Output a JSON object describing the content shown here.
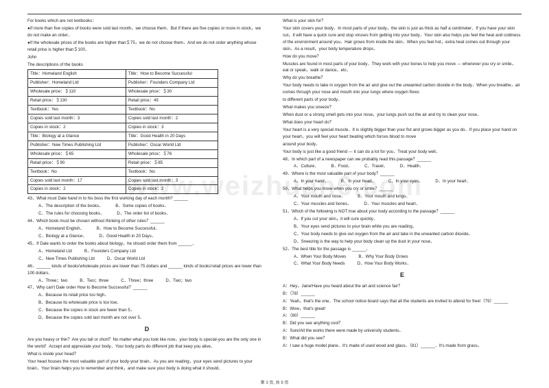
{
  "watermark": "www.weizhuan6.com",
  "footer": "第 3 页, 共 9 页",
  "left": {
    "intro1": "For books which are not textbooks：",
    "intro2": "●If more than five copies of books were sold last month，we choose them．But if there are five copies or more in stock，we do not make an order．",
    "intro3": "●If the wholesale prices of the books are higher than＄75，we do not choose them．And we do not order anything whose retail price is higher than＄100．",
    "john": "John",
    "desc": "The descriptions of the books",
    "table": {
      "r1c1": "Title：Homeland English",
      "r1c2": "Title：How to Become Successful",
      "r2c1": "Publisher：Homeland Ltd",
      "r2c2": "Publisher：Founders Company Ltd",
      "r3c1": "Wholesale price：＄110",
      "r3c2": "Wholesale price：＄30",
      "r4c1": "Retail price：＄130",
      "r4c2": "Retail price：45",
      "r5c1": "Textbook：Yes",
      "r5c2": "Textbook：No",
      "r6c1": "Copies sold last month：3",
      "r6c2": "Copies sold last month：2",
      "r7c1": "Copies in stock：2",
      "r7c2": "Copies in stock：3",
      "r8c1": "Title：Biology at a Glance",
      "r8c2": "Title：Good Health in 20 Days",
      "r9c1": "Publisher：New Times Publishing Ltd",
      "r9c2": "Publisher：Oscar World Ltd",
      "r10c1": "Wholesale price：＄65",
      "r10c2": "Wholesale price：＄76",
      "r11c1": "Retail price：＄90",
      "r11c2": "Retail price：＄85",
      "r12c1": "Textbook：No",
      "r12c2": "Textbook：No",
      "r13c1": "Copies sold last month：17",
      "r13c2": "Copies sold last month：3",
      "r14c1": "Copies in stock：2",
      "r14c2": "Copies in stock：2"
    },
    "q43": "43．What must Dale hand in to his boss the first working day of each month? ______",
    "q43a": "A．The description of the books．",
    "q43b": "B．Some copies of books．",
    "q43c": "C．The rules for choosing books．",
    "q43d": "D．The order list of books．",
    "q44": "44．Which book must be chosen without thinking of other rules？______",
    "q44a": "A．Homeland English．",
    "q44b": "B．How to Become Successful．",
    "q44c": "C．Biology at a Glance．",
    "q44d": "D．Good Health in 20 Days．",
    "q45": "45．If Dale wants to order the books about biology，he should order them from ______．",
    "q45a": "A．Homeland Ltd",
    "q45b": "B．Founders Company Ltd",
    "q45c": "C．New Times Publishing Ltd",
    "q45d": "D．Oscar World Ltd",
    "q46": "46．______ kinds of books'wholesale prices are lower than 75 dollars and ______ kinds of books'retail prices are lower than 100 dollars．",
    "q46a": "A．Three；two",
    "q46b": "B．Two；three",
    "q46c": "C．Three；three",
    "q46d": "D．Two；two",
    "q47": "47．Why can't Dale order How to Become Successful？______",
    "q47a": "A．Because its retail price too high．",
    "q47b": "B．Because its wholesale price is too low．",
    "q47c": "C．Because the copies in stock are fewer than 5．",
    "q47d": "D．Because the copies sold last month are not over 5．",
    "secD": "D",
    "d1": "Are you heavy or thin？Are you tall or short？No matter what you look like now，your body is special-you are the only one in the world！Accept and appreciate your body．Your body parts do different job that keep you alive．",
    "d2": "What is inside your head？",
    "d3": "Your head houses the most valuable part of your body-your brain．As you are reading，your eyes send pictures to your brain．Your brain helps you to remember and think，and make sure your body is doing what it should．"
  },
  "right": {
    "r1": "What is your skin for？",
    "r2": "Your skin covers your body．In most parts of your body，the skin is just as thick as half a centimeter．If you have your skin cut，it will have a quick cure and stop viruses from getting into your body．Your skin also helps you feel the heat and coldness of the environment around you．Hair grows from inside the skin．When you feel hot，extra heat comes out through your skin．As a result，your body temperature drops．",
    "r3": "How do you move？",
    "r4": "Muscles are found in most parts of your body．They work with your bones to help you move --- whenever you cry or smile，eat or speak，walk or dance，etc．",
    "r5": "Why do you breathe？",
    "r6": "Your body needs to take in oxygen from the air and give out the unwanted carbon dioxide in the body．When you breathe，air comes through your nose and mouth into your lungs where oxygen flows",
    "r7": "to different parts of your body．",
    "r8": "What makes you sneeze？",
    "r9": "When dust or a strong smell gets into your nose，your lungs push out the air and try to clean your nose．",
    "r10": "What does your heart do？",
    "r11": "Your heart is a very special muscle．It is slightly bigger than your fist and grows bigger as you do．If you place your hand on your heart，you will feel your heart beating which forces blood to move",
    "r12": "around your body．",
    "r13": "Your body is just like a good friend --- it can do a lot for you．Treat your body well．",
    "q48": "48．In which part of a newspaper can we probably read this passage？______",
    "q48a": "A．Culture．",
    "q48b": "B．Food．",
    "q48c": "C．Travel．",
    "q48d": "D．Health．",
    "q49": "49．Where is the most valuable part of your body？______",
    "q49a": "A．In your hand．",
    "q49b": "B．In your head．",
    "q49c": "C．In your eyes．",
    "q49d": "D．In your heart．",
    "q50": "50．What helps you move when you cry or smile？______",
    "q50a": "A．Your mouth and nose．",
    "q50b": "B．Your mouth and lungs．",
    "q50c": "C．Your muscles and bones．",
    "q50d": "D．Your muscles and heart．",
    "q51": "51．Which of the following is NOT true about your body according to the passage？______",
    "q51a": "A．If you cut your skin，it will cure quickly．",
    "q51b": "B．Your eyes send pictures to your brain while you are reading．",
    "q51c": "C．Your body needs to give out oxygen from the air and take in the unwanted carbon dioxide．",
    "q51d": "D．Sneezing is the way to help your body clean up the dust in your nose．",
    "q52": "52．The best title for the passage is ______．",
    "q52a": "A．When Your Body Moves",
    "q52b": "B．Why Your Body Grows",
    "q52c": "C．What Your Body Needs",
    "q52d": "D．How Your Body Works．",
    "secE": "E",
    "e1": "A：Hey，Jane!Have you heard about the art and science fair？",
    "e2": "B：（78）______",
    "e3": "A：Yeah，that's the one．The school notice board says that all the students are invited to attend for free!（79）______",
    "e4": "B：Wow，that's great!",
    "e5": "A：（80）______",
    "e6": "B：Did you see anything cool？",
    "e7": "A：Sure!All the works there were made by university students．",
    "e8": "B：What did you see？",
    "e9": "A：I saw a huge model plane．It's made of used wood and glass．（81）______．It's made from grass，"
  }
}
